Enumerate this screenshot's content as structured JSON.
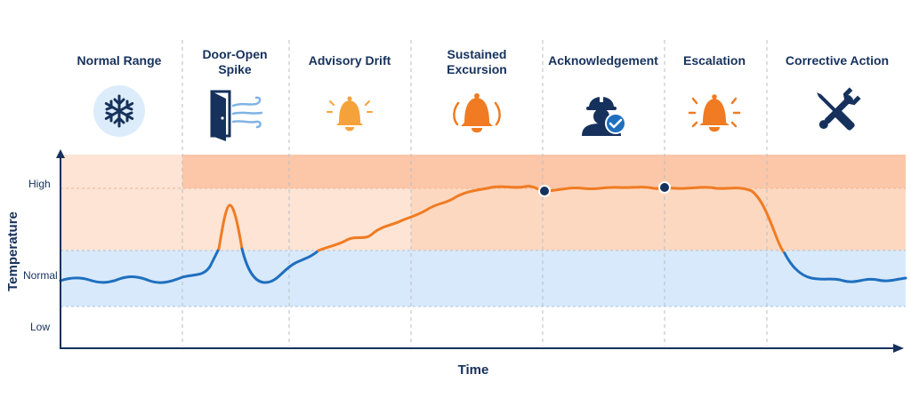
{
  "phases": [
    {
      "title": [
        "Normal Range"
      ],
      "icon": "snowflake-icon"
    },
    {
      "title": [
        "Door-Open",
        "Spike"
      ],
      "icon": "open-door-icon"
    },
    {
      "title": [
        "Advisory Drift"
      ],
      "icon": "bell-alert-icon"
    },
    {
      "title": [
        "Sustained",
        "Excursion"
      ],
      "icon": "bell-alarm-icon"
    },
    {
      "title": [
        "Acknowledgement"
      ],
      "icon": "worker-check-icon"
    },
    {
      "title": [
        "Escalation"
      ],
      "icon": "bell-alarm-icon"
    },
    {
      "title": [
        "Corrective Action"
      ],
      "icon": "wrench-screwdriver-icon"
    }
  ],
  "axes": {
    "x_label": "Time",
    "y_label": "Temperature",
    "y_ticks": [
      "High",
      "Normal",
      "Low"
    ]
  },
  "colors": {
    "navy": "#16315c",
    "normal_line": "#1f6fbf",
    "excursion_line": "#f07b22",
    "normal_band": "#d8e9fb",
    "advisory_band": "#fde4d4",
    "high_band": "#fbc7a8",
    "icon_bg": "#dcecfb",
    "bell_light": "#f6a23a",
    "bell_strong": "#f07b22"
  },
  "chart_data": {
    "type": "line",
    "series": [
      {
        "x": [
          0,
          5,
          10,
          15,
          20,
          25,
          30,
          35,
          40,
          45,
          50,
          55,
          60,
          65,
          70,
          75,
          80,
          85,
          90,
          95,
          100
        ],
        "values": [
          "Normal",
          "Normal",
          "Normal",
          "High",
          "Normal",
          "Normal",
          "Normal",
          "Normal",
          "Normal",
          "High",
          "High",
          "High",
          "High",
          "High",
          "High",
          "High",
          "High",
          "High",
          "Normal",
          "Normal",
          "Normal"
        ]
      }
    ],
    "markers": [
      "Acknowledgement",
      "Escalation"
    ],
    "xlabel": "Time",
    "ylabel": "Temperature",
    "y_categories": [
      "Low",
      "Normal",
      "High"
    ]
  }
}
